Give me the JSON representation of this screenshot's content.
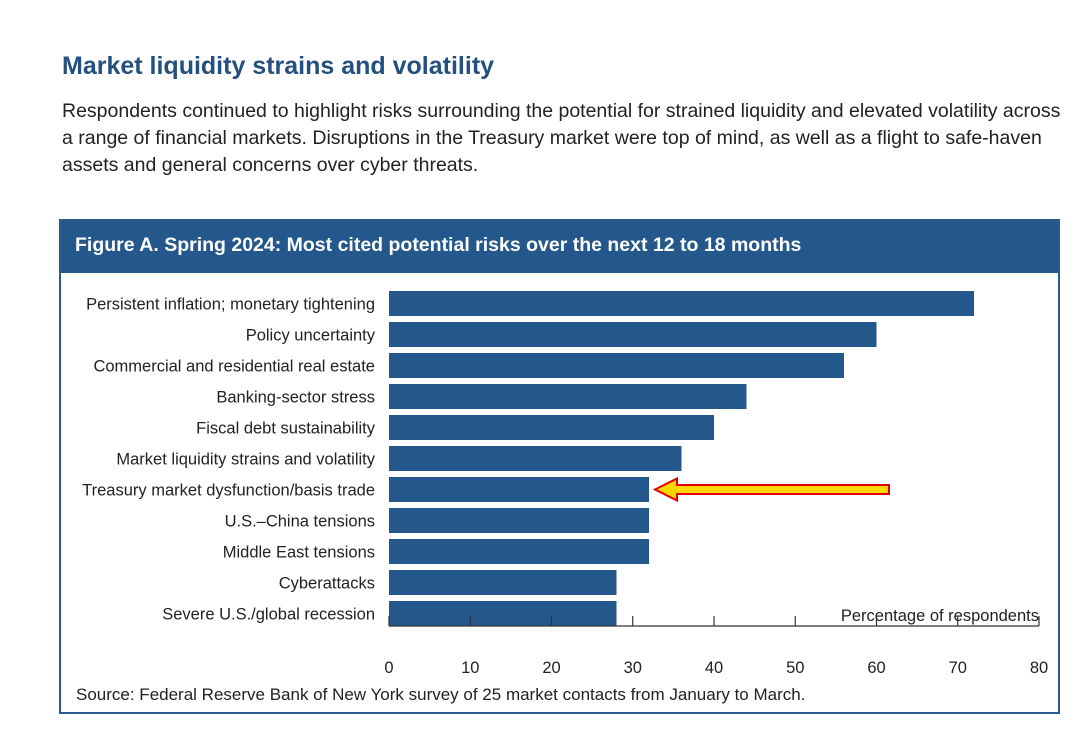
{
  "section": {
    "title": "Market liquidity strains and volatility",
    "intro": "Respondents continued to highlight risks surrounding the potential for strained liquidity and elevated volatility across a range of financial markets. Disruptions in the Treasury market were top of mind, as well as a flight to safe-haven assets and general concerns over cyber threats."
  },
  "figure": {
    "title": "Figure A. Spring 2024: Most cited potential risks over the next 12 to 18 months",
    "source": "Source: Federal Reserve Bank of New York survey of 25 market contacts from January to March."
  },
  "colors": {
    "bar": "#24578b",
    "header": "#24578b",
    "title": "#24507f",
    "arrow_fill": "#ffd700",
    "arrow_stroke": "#e00000"
  },
  "chart_data": {
    "type": "bar",
    "orientation": "horizontal",
    "categories": [
      "Persistent inflation; monetary tightening",
      "Policy uncertainty",
      "Commercial and residential real estate",
      "Banking-sector stress",
      "Fiscal debt sustainability",
      "Market liquidity strains and volatility",
      "Treasury market dysfunction/basis trade",
      "U.S.–China tensions",
      "Middle East tensions",
      "Cyberattacks",
      "Severe U.S./global recession"
    ],
    "values": [
      72,
      60,
      56,
      44,
      40,
      36,
      32,
      32,
      32,
      28,
      28
    ],
    "xlabel": "Percentage of respondents",
    "xlim": [
      0,
      80
    ],
    "xticks": [
      0,
      10,
      20,
      30,
      40,
      50,
      60,
      70,
      80
    ],
    "grid": false,
    "annotation": {
      "type": "arrow",
      "target_category": "Treasury market dysfunction/basis trade"
    }
  }
}
